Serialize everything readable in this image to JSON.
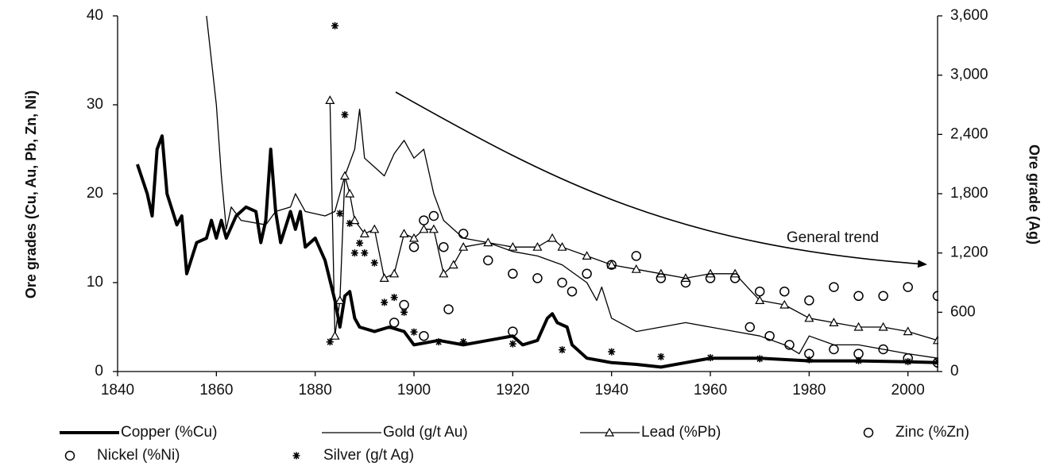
{
  "chart_data": {
    "type": "line",
    "y_label": "Ore grades (Cu, Au, Pb, Zn, Ni)",
    "y2_label": "Ore grade (Ag)",
    "annotation": "General trend",
    "xlim": [
      1840,
      2006
    ],
    "xticks": [
      1840,
      1860,
      1880,
      1900,
      1920,
      1940,
      1960,
      1980,
      2000
    ],
    "ylim": [
      0,
      40
    ],
    "yticks": [
      0,
      10,
      20,
      30,
      40
    ],
    "y2lim": [
      0,
      3600
    ],
    "y2ticks": [
      0,
      600,
      {
        "value": 1200,
        "label": "1,200"
      },
      {
        "value": 1800,
        "label": "1,800"
      },
      {
        "value": 2400,
        "label": "2,400"
      },
      {
        "value": 3000,
        "label": "3,000"
      },
      {
        "value": 3600,
        "label": "3,600"
      }
    ],
    "series": [
      {
        "name": "Copper (%Cu)",
        "color": "#000000",
        "line": true,
        "width": 4,
        "marker": "none",
        "x": [
          1844,
          1846,
          1847,
          1848,
          1849,
          1850,
          1852,
          1853,
          1854,
          1856,
          1858,
          1859,
          1860,
          1861,
          1862,
          1864,
          1866,
          1868,
          1869,
          1870,
          1871,
          1872,
          1873,
          1875,
          1876,
          1877,
          1878,
          1880,
          1882,
          1884,
          1885,
          1886,
          1887,
          1888,
          1889,
          1892,
          1895,
          1898,
          1900,
          1905,
          1910,
          1915,
          1920,
          1922,
          1925,
          1927,
          1928,
          1929,
          1931,
          1932,
          1935,
          1940,
          1945,
          1950,
          1955,
          1960,
          1970,
          1980,
          1990,
          2000,
          2006
        ],
        "values": [
          23.3,
          20,
          17.5,
          25,
          26.5,
          20,
          16.5,
          17.5,
          11,
          14.5,
          15,
          17,
          15,
          17,
          15,
          17.5,
          18.5,
          18,
          14.5,
          17,
          25,
          18,
          14.5,
          18,
          16,
          18,
          14,
          15,
          12.5,
          8,
          5,
          8.5,
          9,
          6,
          5,
          4.5,
          5,
          4.5,
          3,
          3.5,
          3,
          3.5,
          4,
          3,
          3.5,
          6,
          6.5,
          5.5,
          5,
          3,
          1.5,
          1,
          0.8,
          0.5,
          1,
          1.5,
          1.5,
          1.2,
          1.2,
          1.1,
          1
        ]
      },
      {
        "name": "Gold (g/t Au)",
        "color": "#000000",
        "line": true,
        "width": 1.3,
        "marker": "none",
        "x": [
          1858,
          1860,
          1861,
          1862,
          1863,
          1865,
          1870,
          1872,
          1875,
          1876,
          1878,
          1882,
          1884,
          1886,
          1888,
          1889,
          1890,
          1892,
          1894,
          1896,
          1898,
          1900,
          1902,
          1904,
          1906,
          1910,
          1915,
          1920,
          1925,
          1930,
          1935,
          1937,
          1938,
          1940,
          1945,
          1950,
          1955,
          1960,
          1965,
          1970,
          1975,
          1978,
          1980,
          1985,
          1990,
          1995,
          2000,
          2006
        ],
        "values": [
          40,
          30,
          22,
          16,
          18.5,
          17,
          16.5,
          18,
          18.5,
          20,
          18,
          17.5,
          18,
          22,
          25,
          29.5,
          24,
          23,
          22,
          24.5,
          26,
          24,
          25,
          20,
          17,
          15,
          14.5,
          13.5,
          13,
          12,
          10,
          8,
          9.5,
          6,
          4.5,
          5,
          5.5,
          5,
          4.5,
          4,
          3,
          2,
          4,
          3,
          3,
          2.5,
          2,
          1.5
        ]
      },
      {
        "name": "Lead (%Pb)",
        "color": "#000000",
        "line": true,
        "width": 1.3,
        "marker": "triangle",
        "x": [
          1883,
          1884,
          1885,
          1886,
          1887,
          1888,
          1890,
          1892,
          1894,
          1896,
          1898,
          1900,
          1902,
          1904,
          1906,
          1908,
          1910,
          1915,
          1920,
          1925,
          1928,
          1930,
          1935,
          1940,
          1945,
          1950,
          1955,
          1960,
          1965,
          1970,
          1975,
          1980,
          1985,
          1990,
          1995,
          2000,
          2006
        ],
        "values": [
          30.5,
          4,
          8,
          22,
          20,
          17,
          15.5,
          16,
          10.5,
          11,
          15.5,
          15,
          16,
          16,
          11,
          12,
          14,
          14.5,
          14,
          14,
          15,
          14,
          13,
          12,
          11.5,
          11,
          10.5,
          11,
          11,
          8,
          7.5,
          6,
          5.5,
          5,
          5,
          4.5,
          3.5
        ]
      },
      {
        "name": "Zinc (%Zn)",
        "color": "#000000",
        "line": false,
        "marker": "circle",
        "x": [
          1900,
          1902,
          1904,
          1906,
          1910,
          1915,
          1920,
          1925,
          1930,
          1932,
          1935,
          1940,
          1945,
          1950,
          1955,
          1960,
          1965,
          1970,
          1975,
          1980,
          1985,
          1990,
          1995,
          2000,
          2006
        ],
        "values": [
          14,
          17,
          17.5,
          14,
          15.5,
          12.5,
          11,
          10.5,
          10,
          9,
          11,
          12,
          13,
          10.5,
          10,
          10.5,
          10.5,
          9,
          9,
          8,
          9.5,
          8.5,
          8.5,
          9.5,
          8.5
        ]
      },
      {
        "name": "Nickel (%Ni)",
        "color": "#000000",
        "line": false,
        "marker": "circle",
        "x": [
          1896,
          1898,
          1902,
          1907,
          1920,
          1968,
          1972,
          1976,
          1980,
          1985,
          1990,
          1995,
          2000,
          2006
        ],
        "values": [
          5.5,
          7.5,
          4,
          7,
          4.5,
          5,
          4,
          3,
          2,
          2.5,
          2,
          2.5,
          1.5,
          1
        ]
      },
      {
        "name": "Silver (g/t Ag)",
        "color": "#000000",
        "line": false,
        "marker": "asterisk",
        "axis": "y2",
        "x": [
          1883,
          1884,
          1885,
          1886,
          1887,
          1888,
          1889,
          1890,
          1892,
          1894,
          1896,
          1898,
          1900,
          1905,
          1910,
          1920,
          1930,
          1940,
          1950,
          1960,
          1970,
          1980,
          1990,
          2000,
          2006
        ],
        "values": [
          300,
          3500,
          1600,
          2600,
          1500,
          1200,
          1300,
          1200,
          1100,
          700,
          750,
          600,
          400,
          300,
          300,
          280,
          220,
          200,
          150,
          140,
          130,
          120,
          110,
          100,
          100
        ]
      }
    ]
  }
}
